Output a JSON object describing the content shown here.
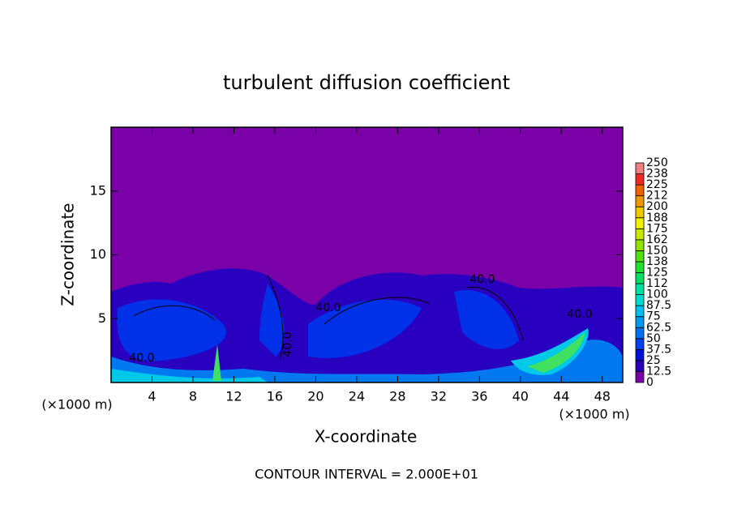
{
  "chart_data": {
    "type": "contour",
    "title": "turbulent diffusion coefficient",
    "xlabel": "X-coordinate",
    "ylabel": "Z-coordinate",
    "x_unit": "(×1000 m)",
    "y_unit": "(×1000 m)",
    "footer": "CONTOUR INTERVAL = 2.000E+01",
    "contour_labels": [
      "40.0",
      "40.0",
      "40.0",
      "40.0",
      "40.0"
    ],
    "xlim": [
      0,
      50
    ],
    "xticks": [
      4,
      8,
      12,
      16,
      20,
      24,
      28,
      32,
      36,
      40,
      44,
      48
    ],
    "ylim": [
      0,
      20
    ],
    "yticks": [
      5,
      10,
      15
    ],
    "colorbar": {
      "ticks": [
        0,
        12.5,
        25,
        37.5,
        50,
        62.5,
        75,
        87.5,
        100,
        112,
        125,
        138,
        150,
        162,
        175,
        188,
        200,
        212,
        225,
        238,
        250
      ],
      "colors": [
        "#7a00a8",
        "#2a00b8",
        "#0010d8",
        "#0040f0",
        "#0070f0",
        "#0098f0",
        "#00c0f0",
        "#00d8d0",
        "#00e0a0",
        "#00e060",
        "#20e030",
        "#50e010",
        "#90e000",
        "#c8e800",
        "#f0f000",
        "#f0c800",
        "#f09800",
        "#f06000",
        "#f02828",
        "#f08080"
      ]
    }
  }
}
